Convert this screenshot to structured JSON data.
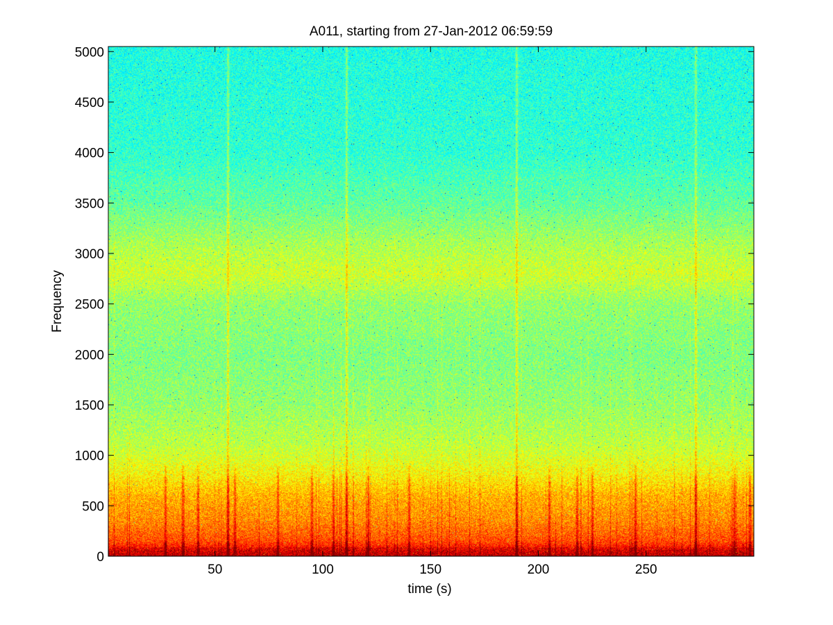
{
  "chart_data": {
    "type": "heatmap",
    "title": "A011, starting from 27-Jan-2012 06:59:59",
    "xlabel": "time (s)",
    "ylabel": "Frequency",
    "xlim": [
      0.5,
      300
    ],
    "ylim": [
      0,
      5050
    ],
    "x_ticks": [
      50,
      100,
      150,
      200,
      250
    ],
    "y_ticks": [
      0,
      500,
      1000,
      1500,
      2000,
      2500,
      3000,
      3500,
      4000,
      4500,
      5000
    ],
    "colormap": "jet",
    "grid": false,
    "color_scale_note": "normalized intensity 0-1",
    "intensity_profile": [
      {
        "freq": 0,
        "level": 0.92
      },
      {
        "freq": 60,
        "level": 0.88
      },
      {
        "freq": 150,
        "level": 0.8
      },
      {
        "freq": 350,
        "level": 0.74
      },
      {
        "freq": 600,
        "level": 0.7
      },
      {
        "freq": 800,
        "level": 0.63
      },
      {
        "freq": 1100,
        "level": 0.56
      },
      {
        "freq": 1500,
        "level": 0.52
      },
      {
        "freq": 2000,
        "level": 0.5
      },
      {
        "freq": 2500,
        "level": 0.52
      },
      {
        "freq": 2800,
        "level": 0.58
      },
      {
        "freq": 3100,
        "level": 0.54
      },
      {
        "freq": 3500,
        "level": 0.47
      },
      {
        "freq": 4000,
        "level": 0.42
      },
      {
        "freq": 5050,
        "level": 0.4
      }
    ],
    "transient_times": [
      27,
      35,
      42,
      56,
      59,
      79,
      95,
      105,
      111,
      121,
      140,
      190,
      205,
      218,
      225,
      245,
      273,
      291,
      298
    ],
    "strong_transient_times": [
      56,
      111,
      190,
      273
    ]
  }
}
